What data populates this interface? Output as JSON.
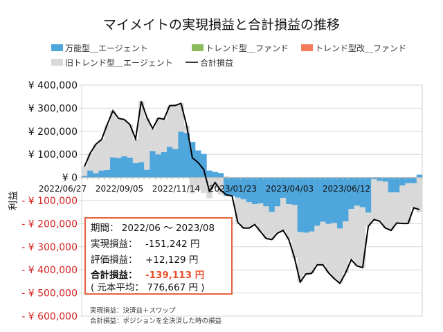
{
  "chart_data": {
    "type": "bar",
    "stacked": true,
    "title": "マイメイトの実現損益と合計損益の推移",
    "ylabel": "利益",
    "ylim": [
      -600000,
      400000
    ],
    "y_ticks": [
      400000,
      300000,
      200000,
      100000,
      0,
      -100000,
      -200000,
      -300000,
      -400000,
      -500000,
      -600000
    ],
    "y_tick_labels": [
      "¥ 400,000",
      "¥ 300,000",
      "¥ 200,000",
      "¥ 100,000",
      "¥ 0",
      "- ¥ 100,000",
      "- ¥ 200,000",
      "- ¥ 300,000",
      "- ¥ 400,000",
      "- ¥ 500,000",
      "- ¥ 600,000"
    ],
    "x_tick_labels": [
      "2022/06/27",
      "2022/09/05",
      "2022/11/14",
      "2023/01/23",
      "2023/04/03",
      "2023/06/12"
    ],
    "grid": true,
    "legend_position": "top",
    "colors": {
      "blue": "#4ea6dc",
      "green": "#8bbb5a",
      "orange": "#f47c5a",
      "gray": "#d9d9d9",
      "line": "#000000",
      "negative_label": "#d42020",
      "info_border": "#e8603c",
      "info_highlight": "#e8502c"
    },
    "series": [
      {
        "name": "万能型＿エージェント",
        "kind": "bar",
        "color": "#4ea6dc",
        "values": [
          7000,
          30000,
          19000,
          30000,
          32000,
          87000,
          85000,
          92000,
          86000,
          62000,
          67000,
          33000,
          115000,
          100000,
          110000,
          133000,
          123000,
          198000,
          193000,
          154000,
          117000,
          102000,
          30000,
          24000,
          19000,
          -80000,
          -80000,
          -87000,
          -95000,
          -107000,
          -115000,
          -112000,
          -125000,
          -149000,
          -125000,
          -88000,
          -115000,
          -119000,
          -236000,
          -239000,
          -234000,
          -209000,
          -192000,
          -201000,
          -197000,
          -221000,
          -190000,
          -136000,
          -122000,
          -129000,
          -152000,
          -8000,
          -15000,
          -18000,
          -65000,
          -65000,
          -35000,
          -25000,
          -25000,
          12000
        ]
      },
      {
        "name": "トレンド型＿ファンド",
        "kind": "bar",
        "color": "#8bbb5a",
        "values": []
      },
      {
        "name": "トレンド型改＿ファンド",
        "kind": "bar",
        "color": "#f47c5a",
        "values": []
      },
      {
        "name": "旧トレンド型＿エージェント",
        "kind": "bar",
        "color": "#d9d9d9",
        "values": [
          41000,
          75000,
          125000,
          134000,
          197000,
          202000,
          171000,
          159000,
          143000,
          105000,
          263000,
          226000,
          97000,
          157000,
          142000,
          178000,
          189000,
          123000,
          31000,
          -69000,
          -52000,
          -67000,
          -90000,
          -46000,
          -74000,
          5000,
          0,
          -107000,
          -124000,
          -112000,
          -89000,
          -122000,
          -139000,
          -120000,
          -116000,
          -141000,
          -154000,
          -229000,
          -217000,
          -179000,
          -181000,
          -169000,
          -186000,
          -212000,
          -241000,
          -237000,
          -223000,
          -220000,
          -261000,
          -261000,
          -59000,
          -174000,
          -174000,
          -201000,
          -164000,
          -132000,
          -164000,
          -174000,
          -106000,
          -151000
        ]
      },
      {
        "name": "合計損益",
        "kind": "line",
        "color": "#000000",
        "values": [
          48000,
          105000,
          144000,
          164000,
          229000,
          289000,
          256000,
          251000,
          229000,
          167000,
          330000,
          259000,
          212000,
          257000,
          252000,
          311000,
          312000,
          321000,
          224000,
          85000,
          65000,
          35000,
          -60000,
          -22000,
          -55000,
          -75000,
          -80000,
          -194000,
          -219000,
          -219000,
          -204000,
          -234000,
          -264000,
          -269000,
          -241000,
          -229000,
          -269000,
          -348000,
          -453000,
          -418000,
          -415000,
          -378000,
          -378000,
          -413000,
          -438000,
          -458000,
          -413000,
          -356000,
          -383000,
          -390000,
          -211000,
          -182000,
          -189000,
          -219000,
          -229000,
          -197000,
          -199000,
          -199000,
          -131000,
          -139113
        ]
      }
    ]
  },
  "info_box": {
    "period": "期間： 2022/06 ～ 2023/08",
    "realized_label": "実現損益：",
    "realized_value": "-151,242 円",
    "unrealized_label": "評価損益：",
    "unrealized_value": "+12,129 円",
    "total_label": "合計損益：",
    "total_value": "-139,113 円",
    "principal": "( 元本平均： 776,667 円 )"
  },
  "notes": [
    "実現損益：決済益＋スワップ",
    "合計損益：ポジションを全決済した時の損益"
  ]
}
